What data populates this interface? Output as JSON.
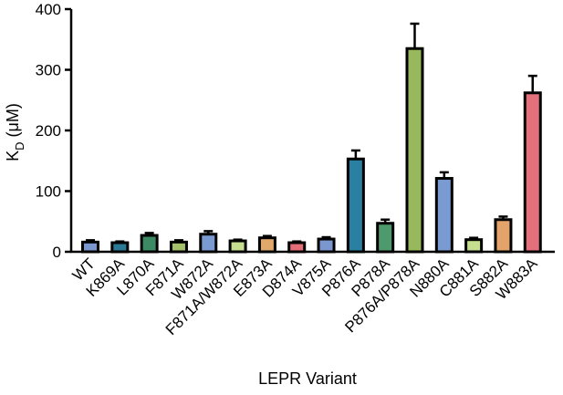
{
  "chart_data": {
    "type": "bar",
    "xlabel": "LEPR Variant",
    "ylabel_main": "K",
    "ylabel_sub": "D",
    "ylabel_unit": " (μM)",
    "ylim": [
      0,
      400
    ],
    "yticks": [
      0,
      100,
      200,
      300,
      400
    ],
    "categories": [
      "WT",
      "K869A",
      "L870A",
      "F871A",
      "W872A",
      "F871A/W872A",
      "E873A",
      "D874A",
      "V875A",
      "P876A",
      "P878A",
      "P876A/P878A",
      "N880A",
      "C881A",
      "S882A",
      "W883A"
    ],
    "values": [
      16,
      15,
      27,
      16,
      29,
      18,
      23,
      15,
      21,
      153,
      47,
      335,
      121,
      20,
      53,
      262
    ],
    "errors": [
      3,
      2,
      4,
      3,
      5,
      2,
      3,
      2,
      3,
      14,
      6,
      41,
      10,
      3,
      5,
      28
    ],
    "colors": [
      "#7b97cf",
      "#2a7a96",
      "#3c8a63",
      "#a4c06b",
      "#7a9ad2",
      "#c5de8f",
      "#e0a86b",
      "#e46d78",
      "#7b97cf",
      "#2980a3",
      "#4f9a6d",
      "#97b85b",
      "#7a9ad2",
      "#c5de8f",
      "#e3a36a",
      "#e3707b"
    ]
  }
}
